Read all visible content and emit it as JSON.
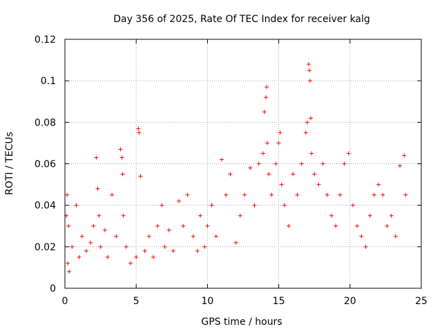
{
  "chart_data": {
    "type": "scatter",
    "title": "Day 356 of 2025, Rate Of TEC Index for receiver kalg",
    "xlabel": "GPS time / hours",
    "ylabel": "ROTI / TECUs",
    "xlim": [
      0,
      25
    ],
    "ylim": [
      0,
      0.12
    ],
    "xticks": [
      0,
      5,
      10,
      15,
      20,
      25
    ],
    "xtick_labels": [
      "0",
      "5",
      "10",
      "15",
      "20",
      "25"
    ],
    "yticks": [
      0,
      0.02,
      0.04,
      0.06,
      0.08,
      0.1,
      0.12
    ],
    "ytick_labels": [
      "0",
      "0.02",
      "0.04",
      "0.06",
      "0.08",
      "0.1",
      "0.12"
    ],
    "grid": true,
    "marker": "+",
    "series": [
      {
        "name": "ROTI",
        "color": "#ff0000",
        "x": [
          0.1,
          0.15,
          0.2,
          0.25,
          0.3,
          0.5,
          0.8,
          1.0,
          1.2,
          1.5,
          1.8,
          2.0,
          2.2,
          2.3,
          2.4,
          2.5,
          2.8,
          3.0,
          3.3,
          3.6,
          3.9,
          4.0,
          4.05,
          4.1,
          4.3,
          4.6,
          5.0,
          5.15,
          5.2,
          5.3,
          5.6,
          5.9,
          6.2,
          6.5,
          6.8,
          7.0,
          7.3,
          7.6,
          8.0,
          8.3,
          8.6,
          9.0,
          9.3,
          9.5,
          9.8,
          10.0,
          10.3,
          10.6,
          11.0,
          11.3,
          11.6,
          12.0,
          12.3,
          12.6,
          13.0,
          13.3,
          13.6,
          13.9,
          14.0,
          14.1,
          14.15,
          14.2,
          14.3,
          14.5,
          14.8,
          15.0,
          15.1,
          15.2,
          15.4,
          15.7,
          16.0,
          16.3,
          16.6,
          16.9,
          17.0,
          17.1,
          17.15,
          17.2,
          17.25,
          17.3,
          17.5,
          17.8,
          18.1,
          18.4,
          18.7,
          19.0,
          19.3,
          19.6,
          19.9,
          20.2,
          20.5,
          20.8,
          21.1,
          21.4,
          21.7,
          22.0,
          22.3,
          22.6,
          22.9,
          23.2,
          23.5,
          23.8,
          23.9
        ],
        "y": [
          0.035,
          0.045,
          0.012,
          0.03,
          0.008,
          0.02,
          0.04,
          0.015,
          0.025,
          0.018,
          0.022,
          0.03,
          0.063,
          0.048,
          0.035,
          0.02,
          0.028,
          0.015,
          0.045,
          0.025,
          0.067,
          0.063,
          0.055,
          0.035,
          0.02,
          0.012,
          0.015,
          0.077,
          0.075,
          0.054,
          0.018,
          0.025,
          0.015,
          0.03,
          0.04,
          0.02,
          0.028,
          0.018,
          0.042,
          0.03,
          0.045,
          0.025,
          0.018,
          0.035,
          0.02,
          0.03,
          0.04,
          0.025,
          0.062,
          0.045,
          0.055,
          0.022,
          0.035,
          0.045,
          0.058,
          0.04,
          0.06,
          0.065,
          0.085,
          0.092,
          0.097,
          0.07,
          0.055,
          0.045,
          0.06,
          0.07,
          0.075,
          0.05,
          0.04,
          0.03,
          0.055,
          0.045,
          0.06,
          0.075,
          0.08,
          0.108,
          0.105,
          0.1,
          0.082,
          0.065,
          0.055,
          0.05,
          0.06,
          0.045,
          0.035,
          0.03,
          0.045,
          0.06,
          0.065,
          0.04,
          0.03,
          0.025,
          0.02,
          0.035,
          0.045,
          0.05,
          0.045,
          0.03,
          0.035,
          0.025,
          0.059,
          0.064,
          0.045
        ]
      }
    ]
  }
}
